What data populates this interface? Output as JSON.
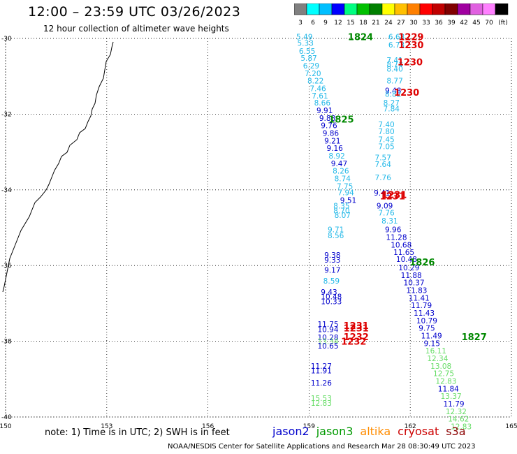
{
  "header": {
    "title": "12:00 – 23:59 UTC 03/26/2023",
    "subtitle": "12 hour collection of altimeter wave heights"
  },
  "colorbar": {
    "labels": [
      "3",
      "6",
      "9",
      "12",
      "15",
      "18",
      "21",
      "24",
      "27",
      "30",
      "33",
      "36",
      "39",
      "42",
      "45",
      "70",
      "(ft)"
    ],
    "colors": [
      "#808080",
      "#00ffff",
      "#00bfff",
      "#0000ff",
      "#00ff80",
      "#00c000",
      "#008000",
      "#ffff00",
      "#ffc000",
      "#ff8000",
      "#ff0000",
      "#c00000",
      "#800000",
      "#a000a0",
      "#e060e0",
      "#ff80ff",
      "#000000"
    ]
  },
  "map": {
    "lon_ticks": [
      "150",
      "153",
      "156",
      "159",
      "162",
      "165"
    ],
    "lat_ticks": [
      "-30",
      "-32",
      "-34",
      "-36",
      "-38",
      "-40"
    ],
    "lon_range": [
      150,
      165
    ],
    "lat_range": [
      -40,
      -30
    ],
    "grid": true
  },
  "notes": {
    "text": "note: 1) Time is in UTC; 2) SWH is in feet",
    "footer": "NOAA/NESDIS Center for Satellite Applications and Research   Mar 28 08:30:49 UTC 2023"
  },
  "satellites": [
    {
      "name": "jason2",
      "color": "#0000cc"
    },
    {
      "name": "jason3",
      "color": "#009900"
    },
    {
      "name": "altika",
      "color": "#ff8c00"
    },
    {
      "name": "cryosat",
      "color": "#cc0000"
    },
    {
      "name": "s3a",
      "color": "#8b0000"
    }
  ],
  "time_labels": [
    {
      "text": "1824",
      "lon": 160.15,
      "lat": -29.95,
      "color": "#008800"
    },
    {
      "text": "1229",
      "lon": 161.65,
      "lat": -29.95,
      "color": "#dd0000"
    },
    {
      "text": "1230",
      "lon": 161.65,
      "lat": -30.17,
      "color": "#dd0000"
    },
    {
      "text": "1230",
      "lon": 161.62,
      "lat": -30.62,
      "color": "#dd0000"
    },
    {
      "text": "1230",
      "lon": 161.52,
      "lat": -31.42,
      "color": "#dd0000"
    },
    {
      "text": "1825",
      "lon": 159.58,
      "lat": -32.13,
      "color": "#008800"
    },
    {
      "text": "1231",
      "lon": 161.15,
      "lat": -34.12,
      "color": "#dd0000"
    },
    {
      "text": "1231",
      "lon": 161.1,
      "lat": -34.16,
      "color": "#dd0000"
    },
    {
      "text": "1826",
      "lon": 161.98,
      "lat": -35.9,
      "color": "#008800"
    },
    {
      "text": "1231",
      "lon": 160.02,
      "lat": -37.58,
      "color": "#dd0000"
    },
    {
      "text": "1231",
      "lon": 160.02,
      "lat": -37.65,
      "color": "#dd0000"
    },
    {
      "text": "1232",
      "lon": 160.02,
      "lat": -37.88,
      "color": "#dd0000"
    },
    {
      "text": "1827",
      "lon": 163.52,
      "lat": -37.88,
      "color": "#008800"
    },
    {
      "text": "1232",
      "lon": 159.95,
      "lat": -38.0,
      "color": "#dd0000"
    }
  ],
  "observations": [
    {
      "v": "5.49",
      "lon": 158.62,
      "lat": -29.95,
      "c": "#22b8e8"
    },
    {
      "v": "5.33",
      "lon": 158.65,
      "lat": -30.12,
      "c": "#22b8e8"
    },
    {
      "v": "6.55",
      "lon": 158.7,
      "lat": -30.33,
      "c": "#22b8e8"
    },
    {
      "v": "5.87",
      "lon": 158.75,
      "lat": -30.52,
      "c": "#22b8e8"
    },
    {
      "v": "6.29",
      "lon": 158.82,
      "lat": -30.72,
      "c": "#22b8e8"
    },
    {
      "v": "7.20",
      "lon": 158.87,
      "lat": -30.92,
      "c": "#22b8e8"
    },
    {
      "v": "8.22",
      "lon": 158.95,
      "lat": -31.12,
      "c": "#22b8e8"
    },
    {
      "v": "7.46",
      "lon": 159.02,
      "lat": -31.32,
      "c": "#22b8e8"
    },
    {
      "v": "7.61",
      "lon": 159.08,
      "lat": -31.51,
      "c": "#22b8e8"
    },
    {
      "v": "8.66",
      "lon": 159.15,
      "lat": -31.7,
      "c": "#22b8e8"
    },
    {
      "v": "9.91",
      "lon": 159.22,
      "lat": -31.9,
      "c": "#0000cc"
    },
    {
      "v": "9.88",
      "lon": 159.3,
      "lat": -32.1,
      "c": "#0000cc"
    },
    {
      "v": "9.76",
      "lon": 159.35,
      "lat": -32.3,
      "c": "#0000cc"
    },
    {
      "v": "9.86",
      "lon": 159.4,
      "lat": -32.5,
      "c": "#0000cc"
    },
    {
      "v": "9.21",
      "lon": 159.45,
      "lat": -32.7,
      "c": "#0000cc"
    },
    {
      "v": "9.16",
      "lon": 159.52,
      "lat": -32.9,
      "c": "#0000cc"
    },
    {
      "v": "8.92",
      "lon": 159.58,
      "lat": -33.1,
      "c": "#22b8e8"
    },
    {
      "v": "9.47",
      "lon": 159.65,
      "lat": -33.3,
      "c": "#0000cc"
    },
    {
      "v": "8.26",
      "lon": 159.7,
      "lat": -33.5,
      "c": "#22b8e8"
    },
    {
      "v": "8.74",
      "lon": 159.75,
      "lat": -33.7,
      "c": "#22b8e8"
    },
    {
      "v": "7.75",
      "lon": 159.82,
      "lat": -33.9,
      "c": "#22b8e8"
    },
    {
      "v": "7.94",
      "lon": 159.85,
      "lat": -34.07,
      "c": "#22b8e8"
    },
    {
      "v": "9.51",
      "lon": 159.92,
      "lat": -34.27,
      "c": "#0000cc"
    },
    {
      "v": "8.35",
      "lon": 159.72,
      "lat": -34.42,
      "c": "#22b8e8"
    },
    {
      "v": "8.70",
      "lon": 159.72,
      "lat": -34.55,
      "c": "#22b8e8"
    },
    {
      "v": "8.07",
      "lon": 159.75,
      "lat": -34.67,
      "c": "#22b8e8"
    },
    {
      "v": "9.71",
      "lon": 159.55,
      "lat": -35.05,
      "c": "#22b8e8"
    },
    {
      "v": "8.56",
      "lon": 159.55,
      "lat": -35.2,
      "c": "#22b8e8"
    },
    {
      "v": "9.38",
      "lon": 159.45,
      "lat": -35.72,
      "c": "#0000cc"
    },
    {
      "v": "9.33",
      "lon": 159.45,
      "lat": -35.85,
      "c": "#0000cc"
    },
    {
      "v": "9.17",
      "lon": 159.45,
      "lat": -36.12,
      "c": "#0000cc"
    },
    {
      "v": "8.59",
      "lon": 159.42,
      "lat": -36.4,
      "c": "#22b8e8"
    },
    {
      "v": "9.43",
      "lon": 159.35,
      "lat": -36.7,
      "c": "#0000cc"
    },
    {
      "v": "10.48",
      "lon": 159.35,
      "lat": -36.82,
      "c": "#0000cc"
    },
    {
      "v": "10.33",
      "lon": 159.35,
      "lat": -36.95,
      "c": "#0000cc"
    },
    {
      "v": "11.75",
      "lon": 159.25,
      "lat": -37.55,
      "c": "#0000cc"
    },
    {
      "v": "10.94",
      "lon": 159.25,
      "lat": -37.68,
      "c": "#0000cc"
    },
    {
      "v": "10.28",
      "lon": 159.25,
      "lat": -37.9,
      "c": "#0000cc"
    },
    {
      "v": "13.34",
      "lon": 159.25,
      "lat": -38.0,
      "c": "#66dd66"
    },
    {
      "v": "10.65",
      "lon": 159.25,
      "lat": -38.12,
      "c": "#0000cc"
    },
    {
      "v": "11.27",
      "lon": 159.05,
      "lat": -38.65,
      "c": "#0000cc"
    },
    {
      "v": "11.91",
      "lon": 159.05,
      "lat": -38.77,
      "c": "#0000cc"
    },
    {
      "v": "11.26",
      "lon": 159.05,
      "lat": -39.1,
      "c": "#0000cc"
    },
    {
      "v": "15.53",
      "lon": 159.05,
      "lat": -39.5,
      "c": "#66dd66"
    },
    {
      "v": "12.83",
      "lon": 159.05,
      "lat": -39.63,
      "c": "#66dd66"
    },
    {
      "v": "6.68",
      "lon": 161.35,
      "lat": -29.95,
      "c": "#22b8e8"
    },
    {
      "v": "6.73",
      "lon": 161.35,
      "lat": -30.17,
      "c": "#22b8e8"
    },
    {
      "v": "7.41",
      "lon": 161.3,
      "lat": -30.57,
      "c": "#22b8e8"
    },
    {
      "v": "8.74",
      "lon": 161.3,
      "lat": -30.68,
      "c": "#22b8e8"
    },
    {
      "v": "8.40",
      "lon": 161.3,
      "lat": -30.8,
      "c": "#22b8e8"
    },
    {
      "v": "8.77",
      "lon": 161.3,
      "lat": -31.12,
      "c": "#22b8e8"
    },
    {
      "v": "9.48",
      "lon": 161.25,
      "lat": -31.37,
      "c": "#0000cc"
    },
    {
      "v": "8.82",
      "lon": 161.25,
      "lat": -31.47,
      "c": "#22b8e8"
    },
    {
      "v": "8.27",
      "lon": 161.2,
      "lat": -31.7,
      "c": "#22b8e8"
    },
    {
      "v": "7.84",
      "lon": 161.2,
      "lat": -31.85,
      "c": "#22b8e8"
    },
    {
      "v": "7.40",
      "lon": 161.05,
      "lat": -32.27,
      "c": "#22b8e8"
    },
    {
      "v": "7.80",
      "lon": 161.05,
      "lat": -32.45,
      "c": "#22b8e8"
    },
    {
      "v": "7.45",
      "lon": 161.05,
      "lat": -32.67,
      "c": "#22b8e8"
    },
    {
      "v": "7.05",
      "lon": 161.05,
      "lat": -32.85,
      "c": "#22b8e8"
    },
    {
      "v": "7.57",
      "lon": 160.95,
      "lat": -33.15,
      "c": "#22b8e8"
    },
    {
      "v": "7.64",
      "lon": 160.95,
      "lat": -33.32,
      "c": "#22b8e8"
    },
    {
      "v": "7.76",
      "lon": 160.95,
      "lat": -33.67,
      "c": "#22b8e8"
    },
    {
      "v": "9.41",
      "lon": 160.92,
      "lat": -34.08,
      "c": "#0000cc"
    },
    {
      "v": "9.09",
      "lon": 161.0,
      "lat": -34.42,
      "c": "#0000cc"
    },
    {
      "v": "7.76",
      "lon": 161.05,
      "lat": -34.6,
      "c": "#22b8e8"
    },
    {
      "v": "8.31",
      "lon": 161.15,
      "lat": -34.82,
      "c": "#22b8e8"
    },
    {
      "v": "9.96",
      "lon": 161.25,
      "lat": -35.05,
      "c": "#0000cc"
    },
    {
      "v": "11.28",
      "lon": 161.28,
      "lat": -35.25,
      "c": "#0000cc"
    },
    {
      "v": "10.68",
      "lon": 161.42,
      "lat": -35.45,
      "c": "#0000cc"
    },
    {
      "v": "11.65",
      "lon": 161.5,
      "lat": -35.65,
      "c": "#0000cc"
    },
    {
      "v": "10.48",
      "lon": 161.58,
      "lat": -35.83,
      "c": "#0000cc"
    },
    {
      "v": "10.29",
      "lon": 161.65,
      "lat": -36.05,
      "c": "#0000cc"
    },
    {
      "v": "11.88",
      "lon": 161.72,
      "lat": -36.25,
      "c": "#0000cc"
    },
    {
      "v": "10.37",
      "lon": 161.8,
      "lat": -36.45,
      "c": "#0000cc"
    },
    {
      "v": "11.83",
      "lon": 161.88,
      "lat": -36.65,
      "c": "#0000cc"
    },
    {
      "v": "11.41",
      "lon": 161.95,
      "lat": -36.85,
      "c": "#0000cc"
    },
    {
      "v": "11.79",
      "lon": 162.02,
      "lat": -37.05,
      "c": "#0000cc"
    },
    {
      "v": "11.43",
      "lon": 162.1,
      "lat": -37.25,
      "c": "#0000cc"
    },
    {
      "v": "10.79",
      "lon": 162.18,
      "lat": -37.45,
      "c": "#0000cc"
    },
    {
      "v": "9.75",
      "lon": 162.25,
      "lat": -37.65,
      "c": "#0000cc"
    },
    {
      "v": "11.49",
      "lon": 162.32,
      "lat": -37.85,
      "c": "#0000cc"
    },
    {
      "v": "9.15",
      "lon": 162.4,
      "lat": -38.05,
      "c": "#0000cc"
    },
    {
      "v": "16.11",
      "lon": 162.45,
      "lat": -38.25,
      "c": "#66dd66"
    },
    {
      "v": "12.34",
      "lon": 162.5,
      "lat": -38.45,
      "c": "#66dd66"
    },
    {
      "v": "13.08",
      "lon": 162.6,
      "lat": -38.65,
      "c": "#66dd66"
    },
    {
      "v": "12.75",
      "lon": 162.68,
      "lat": -38.85,
      "c": "#66dd66"
    },
    {
      "v": "12.83",
      "lon": 162.75,
      "lat": -39.05,
      "c": "#66dd66"
    },
    {
      "v": "11.84",
      "lon": 162.82,
      "lat": -39.25,
      "c": "#0000cc"
    },
    {
      "v": "13.37",
      "lon": 162.9,
      "lat": -39.45,
      "c": "#66dd66"
    },
    {
      "v": "11.79",
      "lon": 162.98,
      "lat": -39.65,
      "c": "#0000cc"
    },
    {
      "v": "12.32",
      "lon": 163.05,
      "lat": -39.85,
      "c": "#66dd66"
    },
    {
      "v": "14.62",
      "lon": 163.12,
      "lat": -40.05,
      "c": "#66dd66"
    },
    {
      "v": "12.83",
      "lon": 163.2,
      "lat": -40.25,
      "c": "#66dd66"
    }
  ]
}
